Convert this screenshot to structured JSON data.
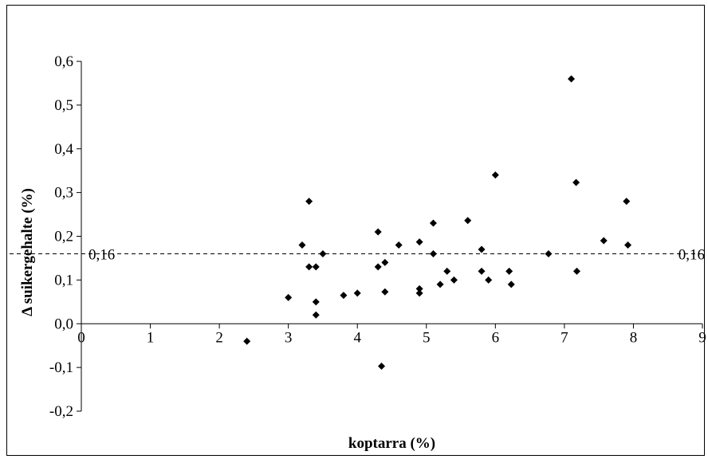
{
  "chart_data": {
    "type": "scatter",
    "xlabel": "koptarra (%)",
    "ylabel": "Δ suikergehalte (%)",
    "xlim": [
      0,
      9
    ],
    "ylim": [
      -0.2,
      0.6
    ],
    "x_ticks": [
      "0",
      "1",
      "2",
      "3",
      "4",
      "5",
      "6",
      "7",
      "8",
      "9"
    ],
    "y_ticks": [
      "-0,2",
      "-0,1",
      "0,0",
      "0,1",
      "0,2",
      "0,3",
      "0,4",
      "0,5",
      "0,6"
    ],
    "grid": false,
    "legend": "none",
    "marker": "diamond",
    "marker_color": "#000000",
    "reference_line": {
      "y": 0.16,
      "style": "dashed",
      "label_left": "0,16",
      "label_right": "0,16"
    },
    "points": [
      {
        "x": 2.4,
        "y": -0.04
      },
      {
        "x": 3.0,
        "y": 0.06
      },
      {
        "x": 3.2,
        "y": 0.18
      },
      {
        "x": 3.3,
        "y": 0.28
      },
      {
        "x": 3.3,
        "y": 0.13
      },
      {
        "x": 3.4,
        "y": 0.13
      },
      {
        "x": 3.4,
        "y": 0.05
      },
      {
        "x": 3.4,
        "y": 0.02
      },
      {
        "x": 3.5,
        "y": 0.16
      },
      {
        "x": 3.8,
        "y": 0.065
      },
      {
        "x": 4.0,
        "y": 0.07
      },
      {
        "x": 4.3,
        "y": 0.21
      },
      {
        "x": 4.3,
        "y": 0.13
      },
      {
        "x": 4.35,
        "y": -0.097
      },
      {
        "x": 4.4,
        "y": 0.14
      },
      {
        "x": 4.4,
        "y": 0.073
      },
      {
        "x": 4.6,
        "y": 0.18
      },
      {
        "x": 4.9,
        "y": 0.187
      },
      {
        "x": 4.9,
        "y": 0.08
      },
      {
        "x": 4.9,
        "y": 0.07
      },
      {
        "x": 5.1,
        "y": 0.23
      },
      {
        "x": 5.1,
        "y": 0.16
      },
      {
        "x": 5.2,
        "y": 0.09
      },
      {
        "x": 5.3,
        "y": 0.12
      },
      {
        "x": 5.4,
        "y": 0.1
      },
      {
        "x": 5.6,
        "y": 0.236
      },
      {
        "x": 5.8,
        "y": 0.17
      },
      {
        "x": 5.8,
        "y": 0.12
      },
      {
        "x": 5.9,
        "y": 0.1
      },
      {
        "x": 6.0,
        "y": 0.34
      },
      {
        "x": 6.2,
        "y": 0.12
      },
      {
        "x": 6.23,
        "y": 0.09
      },
      {
        "x": 6.77,
        "y": 0.16
      },
      {
        "x": 7.1,
        "y": 0.56
      },
      {
        "x": 7.17,
        "y": 0.323
      },
      {
        "x": 7.18,
        "y": 0.12
      },
      {
        "x": 7.57,
        "y": 0.19
      },
      {
        "x": 7.9,
        "y": 0.28
      },
      {
        "x": 7.92,
        "y": 0.18
      }
    ]
  }
}
